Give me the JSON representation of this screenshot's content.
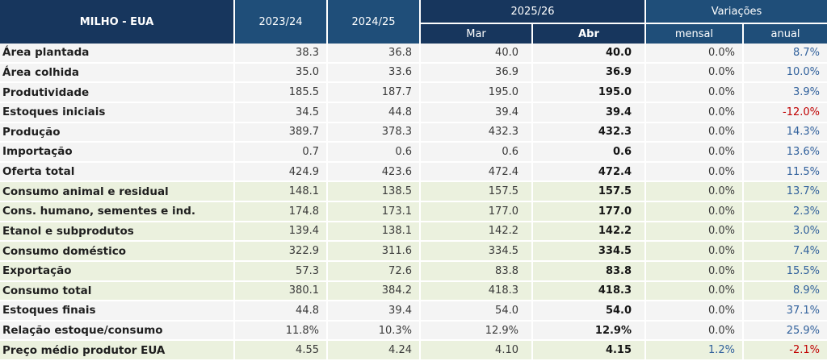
{
  "table": {
    "title": "MILHO - EUA",
    "col_headers": {
      "year1": "2023/24",
      "year2": "2024/25",
      "year3": "2025/26",
      "month1": "Mar",
      "month2": "Abr",
      "variations": "Variações",
      "monthly": "mensal",
      "annual": "anual"
    },
    "colors": {
      "header_dark_navy": "#17365D",
      "header_medium_blue": "#1F4E79",
      "row_gray": "#F4F4F4",
      "row_green": "#EBF1DE",
      "positive_blue": "#31619C",
      "negative_red": "#C00000"
    },
    "rows": [
      {
        "label": "Área plantada",
        "y1": "38.3",
        "y2": "36.8",
        "mar": "40.0",
        "abr": "40.0",
        "mensal": "0.0%",
        "anual": "8.7%",
        "bg": "gray",
        "mensal_color": "dark",
        "anual_color": "blue"
      },
      {
        "label": "Área colhida",
        "y1": "35.0",
        "y2": "33.6",
        "mar": "36.9",
        "abr": "36.9",
        "mensal": "0.0%",
        "anual": "10.0%",
        "bg": "gray",
        "mensal_color": "dark",
        "anual_color": "blue"
      },
      {
        "label": "Produtividade",
        "y1": "185.5",
        "y2": "187.7",
        "mar": "195.0",
        "abr": "195.0",
        "mensal": "0.0%",
        "anual": "3.9%",
        "bg": "gray",
        "mensal_color": "dark",
        "anual_color": "blue"
      },
      {
        "label": "Estoques iniciais",
        "y1": "34.5",
        "y2": "44.8",
        "mar": "39.4",
        "abr": "39.4",
        "mensal": "0.0%",
        "anual": "-12.0%",
        "bg": "gray",
        "mensal_color": "dark",
        "anual_color": "red"
      },
      {
        "label": "Produção",
        "y1": "389.7",
        "y2": "378.3",
        "mar": "432.3",
        "abr": "432.3",
        "mensal": "0.0%",
        "anual": "14.3%",
        "bg": "gray",
        "mensal_color": "dark",
        "anual_color": "blue"
      },
      {
        "label": "Importação",
        "y1": "0.7",
        "y2": "0.6",
        "mar": "0.6",
        "abr": "0.6",
        "mensal": "0.0%",
        "anual": "13.6%",
        "bg": "gray",
        "mensal_color": "dark",
        "anual_color": "blue"
      },
      {
        "label": "Oferta total",
        "y1": "424.9",
        "y2": "423.6",
        "mar": "472.4",
        "abr": "472.4",
        "mensal": "0.0%",
        "anual": "11.5%",
        "bg": "gray",
        "mensal_color": "dark",
        "anual_color": "blue"
      },
      {
        "label": "Consumo animal e residual",
        "y1": "148.1",
        "y2": "138.5",
        "mar": "157.5",
        "abr": "157.5",
        "mensal": "0.0%",
        "anual": "13.7%",
        "bg": "green",
        "mensal_color": "dark",
        "anual_color": "blue"
      },
      {
        "label": "Cons. humano, sementes e ind.",
        "y1": "174.8",
        "y2": "173.1",
        "mar": "177.0",
        "abr": "177.0",
        "mensal": "0.0%",
        "anual": "2.3%",
        "bg": "green",
        "mensal_color": "dark",
        "anual_color": "blue"
      },
      {
        "label": "Etanol e subprodutos",
        "y1": "139.4",
        "y2": "138.1",
        "mar": "142.2",
        "abr": "142.2",
        "mensal": "0.0%",
        "anual": "3.0%",
        "bg": "green",
        "mensal_color": "dark",
        "anual_color": "blue"
      },
      {
        "label": "Consumo doméstico",
        "y1": "322.9",
        "y2": "311.6",
        "mar": "334.5",
        "abr": "334.5",
        "mensal": "0.0%",
        "anual": "7.4%",
        "bg": "green",
        "mensal_color": "dark",
        "anual_color": "blue"
      },
      {
        "label": "Exportação",
        "y1": "57.3",
        "y2": "72.6",
        "mar": "83.8",
        "abr": "83.8",
        "mensal": "0.0%",
        "anual": "15.5%",
        "bg": "green",
        "mensal_color": "dark",
        "anual_color": "blue"
      },
      {
        "label": "Consumo total",
        "y1": "380.1",
        "y2": "384.2",
        "mar": "418.3",
        "abr": "418.3",
        "mensal": "0.0%",
        "anual": "8.9%",
        "bg": "green",
        "mensal_color": "dark",
        "anual_color": "blue"
      },
      {
        "label": "Estoques finais",
        "y1": "44.8",
        "y2": "39.4",
        "mar": "54.0",
        "abr": "54.0",
        "mensal": "0.0%",
        "anual": "37.1%",
        "bg": "gray",
        "mensal_color": "dark",
        "anual_color": "blue"
      },
      {
        "label": "Relação estoque/consumo",
        "y1": "11.8%",
        "y2": "10.3%",
        "mar": "12.9%",
        "abr": "12.9%",
        "mensal": "0.0%",
        "anual": "25.9%",
        "bg": "gray",
        "mensal_color": "dark",
        "anual_color": "blue"
      },
      {
        "label": "Preço médio produtor EUA",
        "y1": "4.55",
        "y2": "4.24",
        "mar": "4.10",
        "abr": "4.15",
        "mensal": "1.2%",
        "anual": "-2.1%",
        "bg": "green",
        "mensal_color": "blue",
        "anual_color": "red"
      }
    ]
  },
  "chart_data": {
    "type": "table",
    "title": "MILHO - EUA",
    "columns": [
      "MILHO - EUA",
      "2023/24",
      "2024/25",
      "2025/26 Mar",
      "2025/26 Abr",
      "Variações mensal",
      "Variações anual"
    ],
    "rows": [
      [
        "Área plantada",
        38.3,
        36.8,
        40.0,
        40.0,
        "0.0%",
        "8.7%"
      ],
      [
        "Área colhida",
        35.0,
        33.6,
        36.9,
        36.9,
        "0.0%",
        "10.0%"
      ],
      [
        "Produtividade",
        185.5,
        187.7,
        195.0,
        195.0,
        "0.0%",
        "3.9%"
      ],
      [
        "Estoques iniciais",
        34.5,
        44.8,
        39.4,
        39.4,
        "0.0%",
        "-12.0%"
      ],
      [
        "Produção",
        389.7,
        378.3,
        432.3,
        432.3,
        "0.0%",
        "14.3%"
      ],
      [
        "Importação",
        0.7,
        0.6,
        0.6,
        0.6,
        "0.0%",
        "13.6%"
      ],
      [
        "Oferta total",
        424.9,
        423.6,
        472.4,
        472.4,
        "0.0%",
        "11.5%"
      ],
      [
        "Consumo animal e residual",
        148.1,
        138.5,
        157.5,
        157.5,
        "0.0%",
        "13.7%"
      ],
      [
        "Cons. humano, sementes e ind.",
        174.8,
        173.1,
        177.0,
        177.0,
        "0.0%",
        "2.3%"
      ],
      [
        "Etanol e subprodutos",
        139.4,
        138.1,
        142.2,
        142.2,
        "0.0%",
        "3.0%"
      ],
      [
        "Consumo doméstico",
        322.9,
        311.6,
        334.5,
        334.5,
        "0.0%",
        "7.4%"
      ],
      [
        "Exportação",
        57.3,
        72.6,
        83.8,
        83.8,
        "0.0%",
        "15.5%"
      ],
      [
        "Consumo total",
        380.1,
        384.2,
        418.3,
        418.3,
        "0.0%",
        "8.9%"
      ],
      [
        "Estoques finais",
        44.8,
        39.4,
        54.0,
        54.0,
        "0.0%",
        "37.1%"
      ],
      [
        "Relação estoque/consumo",
        "11.8%",
        "10.3%",
        "12.9%",
        "12.9%",
        "0.0%",
        "25.9%"
      ],
      [
        "Preço médio produtor EUA",
        4.55,
        4.24,
        4.1,
        4.15,
        "1.2%",
        "-2.1%"
      ]
    ]
  }
}
